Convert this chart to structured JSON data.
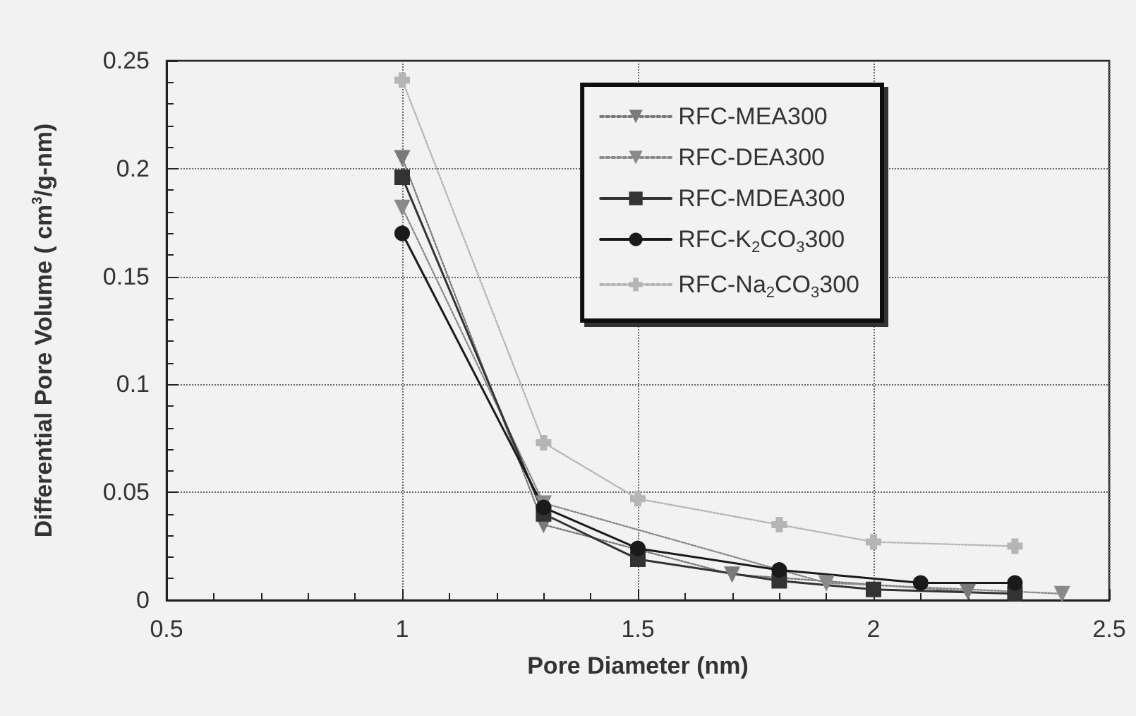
{
  "chart_data": {
    "type": "line",
    "xlabel": "Pore Diameter (nm)",
    "ylabel": "Differential Pore Volume ( cm$^{3}$/g-nm)",
    "xlim": [
      0.5,
      2.5
    ],
    "xticks": [
      0.5,
      1,
      1.5,
      2,
      2.5
    ],
    "ylim": [
      0,
      0.25
    ],
    "yticks": [
      0,
      0.05,
      0.1,
      0.15,
      0.2,
      0.25
    ],
    "grid": true,
    "legend": "top right",
    "series": [
      {
        "name": "RFC-MEA300",
        "color": "#7a7a7a",
        "marker": "triangle",
        "line_style": "dotted",
        "x": [
          1,
          1.3,
          1.7,
          2.2
        ],
        "values": [
          0.205,
          0.035,
          0.012,
          0.004
        ]
      },
      {
        "name": "RFC-DEA300",
        "color": "#8a8a8a",
        "marker": "triangle",
        "line_style": "dotted",
        "x": [
          1,
          1.3,
          1.9,
          2.4
        ],
        "values": [
          0.182,
          0.045,
          0.008,
          0.003
        ]
      },
      {
        "name": "RFC-MDEA300",
        "color": "#333333",
        "marker": "square",
        "line_style": "solid",
        "x": [
          1,
          1.3,
          1.5,
          1.8,
          2,
          2.3
        ],
        "values": [
          0.196,
          0.04,
          0.019,
          0.009,
          0.005,
          0.003
        ]
      },
      {
        "name": "RFC-K$_{2}$CO$_{3}$300",
        "color": "#1a1a1a",
        "marker": "circle",
        "line_style": "solid",
        "x": [
          1,
          1.3,
          1.5,
          1.8,
          2.1,
          2.3
        ],
        "values": [
          0.17,
          0.043,
          0.024,
          0.014,
          0.008,
          0.008
        ]
      },
      {
        "name": "RFC-Na$_{2}$CO$_{3}$300",
        "color": "#b5b5b5",
        "marker": "cross",
        "line_style": "dotted",
        "x": [
          1,
          1.3,
          1.5,
          1.8,
          2,
          2.3
        ],
        "values": [
          0.241,
          0.073,
          0.047,
          0.035,
          0.027,
          0.025
        ]
      }
    ]
  }
}
